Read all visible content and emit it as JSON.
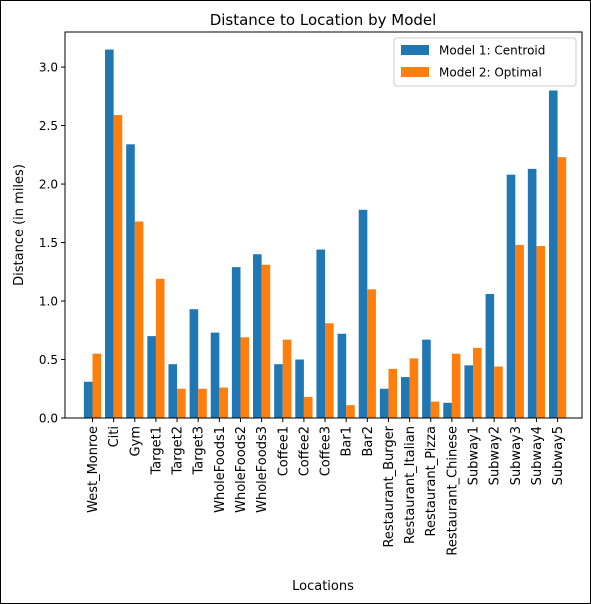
{
  "chart_data": {
    "type": "bar",
    "title": "Distance to Location by Model",
    "xlabel": "Locations",
    "ylabel": "Distance (in miles)",
    "ylim": [
      0,
      3.3
    ],
    "yticks": [
      "0.0",
      "0.5",
      "1.0",
      "1.5",
      "2.0",
      "2.5",
      "3.0"
    ],
    "grid": false,
    "legend_position": "top-right",
    "categories": [
      "West_Monroe",
      "Citi",
      "Gym",
      "Target1",
      "Target2",
      "Target3",
      "WholeFoods1",
      "WholeFoods2",
      "WholeFoods3",
      "Coffee1",
      "Coffee2",
      "Coffee3",
      "Bar1",
      "Bar2",
      "Restaurant_Burger",
      "Restaurant_Italian",
      "Restaurant_Pizza",
      "Restaurant_Chinese",
      "Subway1",
      "Subway2",
      "Subway3",
      "Subway4",
      "Subway5"
    ],
    "series": [
      {
        "name": "Model 1: Centroid",
        "color": "#1f77b4",
        "values": [
          0.31,
          3.15,
          2.34,
          0.7,
          0.46,
          0.93,
          0.73,
          1.29,
          1.4,
          0.46,
          0.5,
          1.44,
          0.72,
          1.78,
          0.25,
          0.35,
          0.67,
          0.13,
          0.45,
          1.06,
          2.08,
          2.13,
          2.8
        ]
      },
      {
        "name": "Model 2: Optimal",
        "color": "#ff7f0e",
        "values": [
          0.55,
          2.59,
          1.68,
          1.19,
          0.25,
          0.25,
          0.26,
          0.69,
          1.31,
          0.67,
          0.18,
          0.81,
          0.11,
          1.1,
          0.42,
          0.51,
          0.14,
          0.55,
          0.6,
          0.44,
          1.48,
          1.47,
          2.23
        ]
      }
    ]
  }
}
